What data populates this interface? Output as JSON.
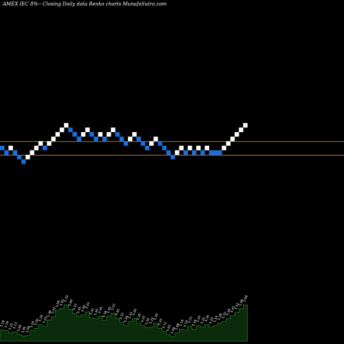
{
  "title": "AMEX  IEC 8%-- Closing Daily data  Renko  charts MunafaSutra.com",
  "colors": {
    "background": "#000000",
    "up_brick": "#ffffff",
    "down_brick": "#1a6fe0",
    "level_line": "#b07a3c",
    "volume_fill": "#0c2a0c",
    "volume_line": "#1f7a1f",
    "label": "#ffffff"
  },
  "chart_data": {
    "type": "renko",
    "bricks": [
      {
        "dir": "down",
        "level": 10
      },
      {
        "dir": "down",
        "level": 9
      },
      {
        "dir": "up",
        "level": 10
      },
      {
        "dir": "down",
        "level": 9
      },
      {
        "dir": "down",
        "level": 8
      },
      {
        "dir": "down",
        "level": 7
      },
      {
        "dir": "up",
        "level": 8
      },
      {
        "dir": "up",
        "level": 9
      },
      {
        "dir": "up",
        "level": 10
      },
      {
        "dir": "up",
        "level": 11
      },
      {
        "dir": "down",
        "level": 10
      },
      {
        "dir": "up",
        "level": 11
      },
      {
        "dir": "up",
        "level": 12
      },
      {
        "dir": "up",
        "level": 13
      },
      {
        "dir": "up",
        "level": 14
      },
      {
        "dir": "up",
        "level": 15
      },
      {
        "dir": "down",
        "level": 14
      },
      {
        "dir": "down",
        "level": 13
      },
      {
        "dir": "down",
        "level": 12
      },
      {
        "dir": "up",
        "level": 13
      },
      {
        "dir": "up",
        "level": 14
      },
      {
        "dir": "down",
        "level": 13
      },
      {
        "dir": "down",
        "level": 12
      },
      {
        "dir": "up",
        "level": 13
      },
      {
        "dir": "down",
        "level": 12
      },
      {
        "dir": "up",
        "level": 13
      },
      {
        "dir": "up",
        "level": 14
      },
      {
        "dir": "down",
        "level": 13
      },
      {
        "dir": "down",
        "level": 12
      },
      {
        "dir": "down",
        "level": 11
      },
      {
        "dir": "up",
        "level": 12
      },
      {
        "dir": "up",
        "level": 13
      },
      {
        "dir": "down",
        "level": 12
      },
      {
        "dir": "down",
        "level": 11
      },
      {
        "dir": "down",
        "level": 10
      },
      {
        "dir": "up",
        "level": 11
      },
      {
        "dir": "up",
        "level": 12
      },
      {
        "dir": "down",
        "level": 11
      },
      {
        "dir": "down",
        "level": 10
      },
      {
        "dir": "down",
        "level": 9
      },
      {
        "dir": "down",
        "level": 8
      },
      {
        "dir": "up",
        "level": 9
      },
      {
        "dir": "up",
        "level": 10
      },
      {
        "dir": "down",
        "level": 9
      },
      {
        "dir": "up",
        "level": 10
      },
      {
        "dir": "down",
        "level": 9
      },
      {
        "dir": "up",
        "level": 10
      },
      {
        "dir": "down",
        "level": 9
      },
      {
        "dir": "up",
        "level": 10
      },
      {
        "dir": "down",
        "level": 9
      },
      {
        "dir": "down",
        "level": 9
      },
      {
        "dir": "down",
        "level": 9
      },
      {
        "dir": "up",
        "level": 10
      },
      {
        "dir": "up",
        "level": 11
      },
      {
        "dir": "up",
        "level": 12
      },
      {
        "dir": "up",
        "level": 13
      },
      {
        "dir": "up",
        "level": 14
      },
      {
        "dir": "up",
        "level": 15
      }
    ],
    "level_lines": [
      {
        "level": 11.5
      },
      {
        "level": 8.5
      }
    ],
    "volume_labels": [
      "5.18",
      "5.16",
      "5.10",
      "5.13",
      "5.08",
      "5.05",
      "5.06",
      "5.16",
      "5.20",
      "5.28",
      "5.25",
      "5.38",
      "5.45",
      "5.58",
      "5.62",
      "5.70",
      "5.60",
      "5.52",
      "5.45",
      "5.48",
      "5.55",
      "5.42",
      "5.40",
      "5.45",
      "5.36",
      "5.45",
      "5.52",
      "5.40",
      "5.32",
      "5.26",
      "5.33",
      "5.40",
      "5.30",
      "5.25",
      "5.20",
      "5.22",
      "5.30",
      "5.18",
      "5.12",
      "5.05",
      "5.00",
      "5.08",
      "5.16",
      "5.14",
      "5.22",
      "5.16",
      "5.24",
      "5.20",
      "5.26",
      "5.20",
      "5.24",
      "5.28",
      "5.32",
      "5.38",
      "5.45",
      "5.52",
      "5.60",
      "5.68"
    ],
    "volume_levels": [
      0.3,
      0.28,
      0.22,
      0.25,
      0.18,
      0.14,
      0.15,
      0.28,
      0.34,
      0.44,
      0.4,
      0.56,
      0.65,
      0.82,
      0.86,
      0.96,
      0.85,
      0.74,
      0.66,
      0.7,
      0.78,
      0.62,
      0.6,
      0.66,
      0.55,
      0.66,
      0.74,
      0.6,
      0.5,
      0.42,
      0.52,
      0.6,
      0.48,
      0.42,
      0.36,
      0.38,
      0.48,
      0.34,
      0.26,
      0.18,
      0.12,
      0.22,
      0.32,
      0.3,
      0.4,
      0.32,
      0.42,
      0.38,
      0.44,
      0.38,
      0.42,
      0.48,
      0.52,
      0.6,
      0.68,
      0.76,
      0.86,
      0.96
    ]
  }
}
